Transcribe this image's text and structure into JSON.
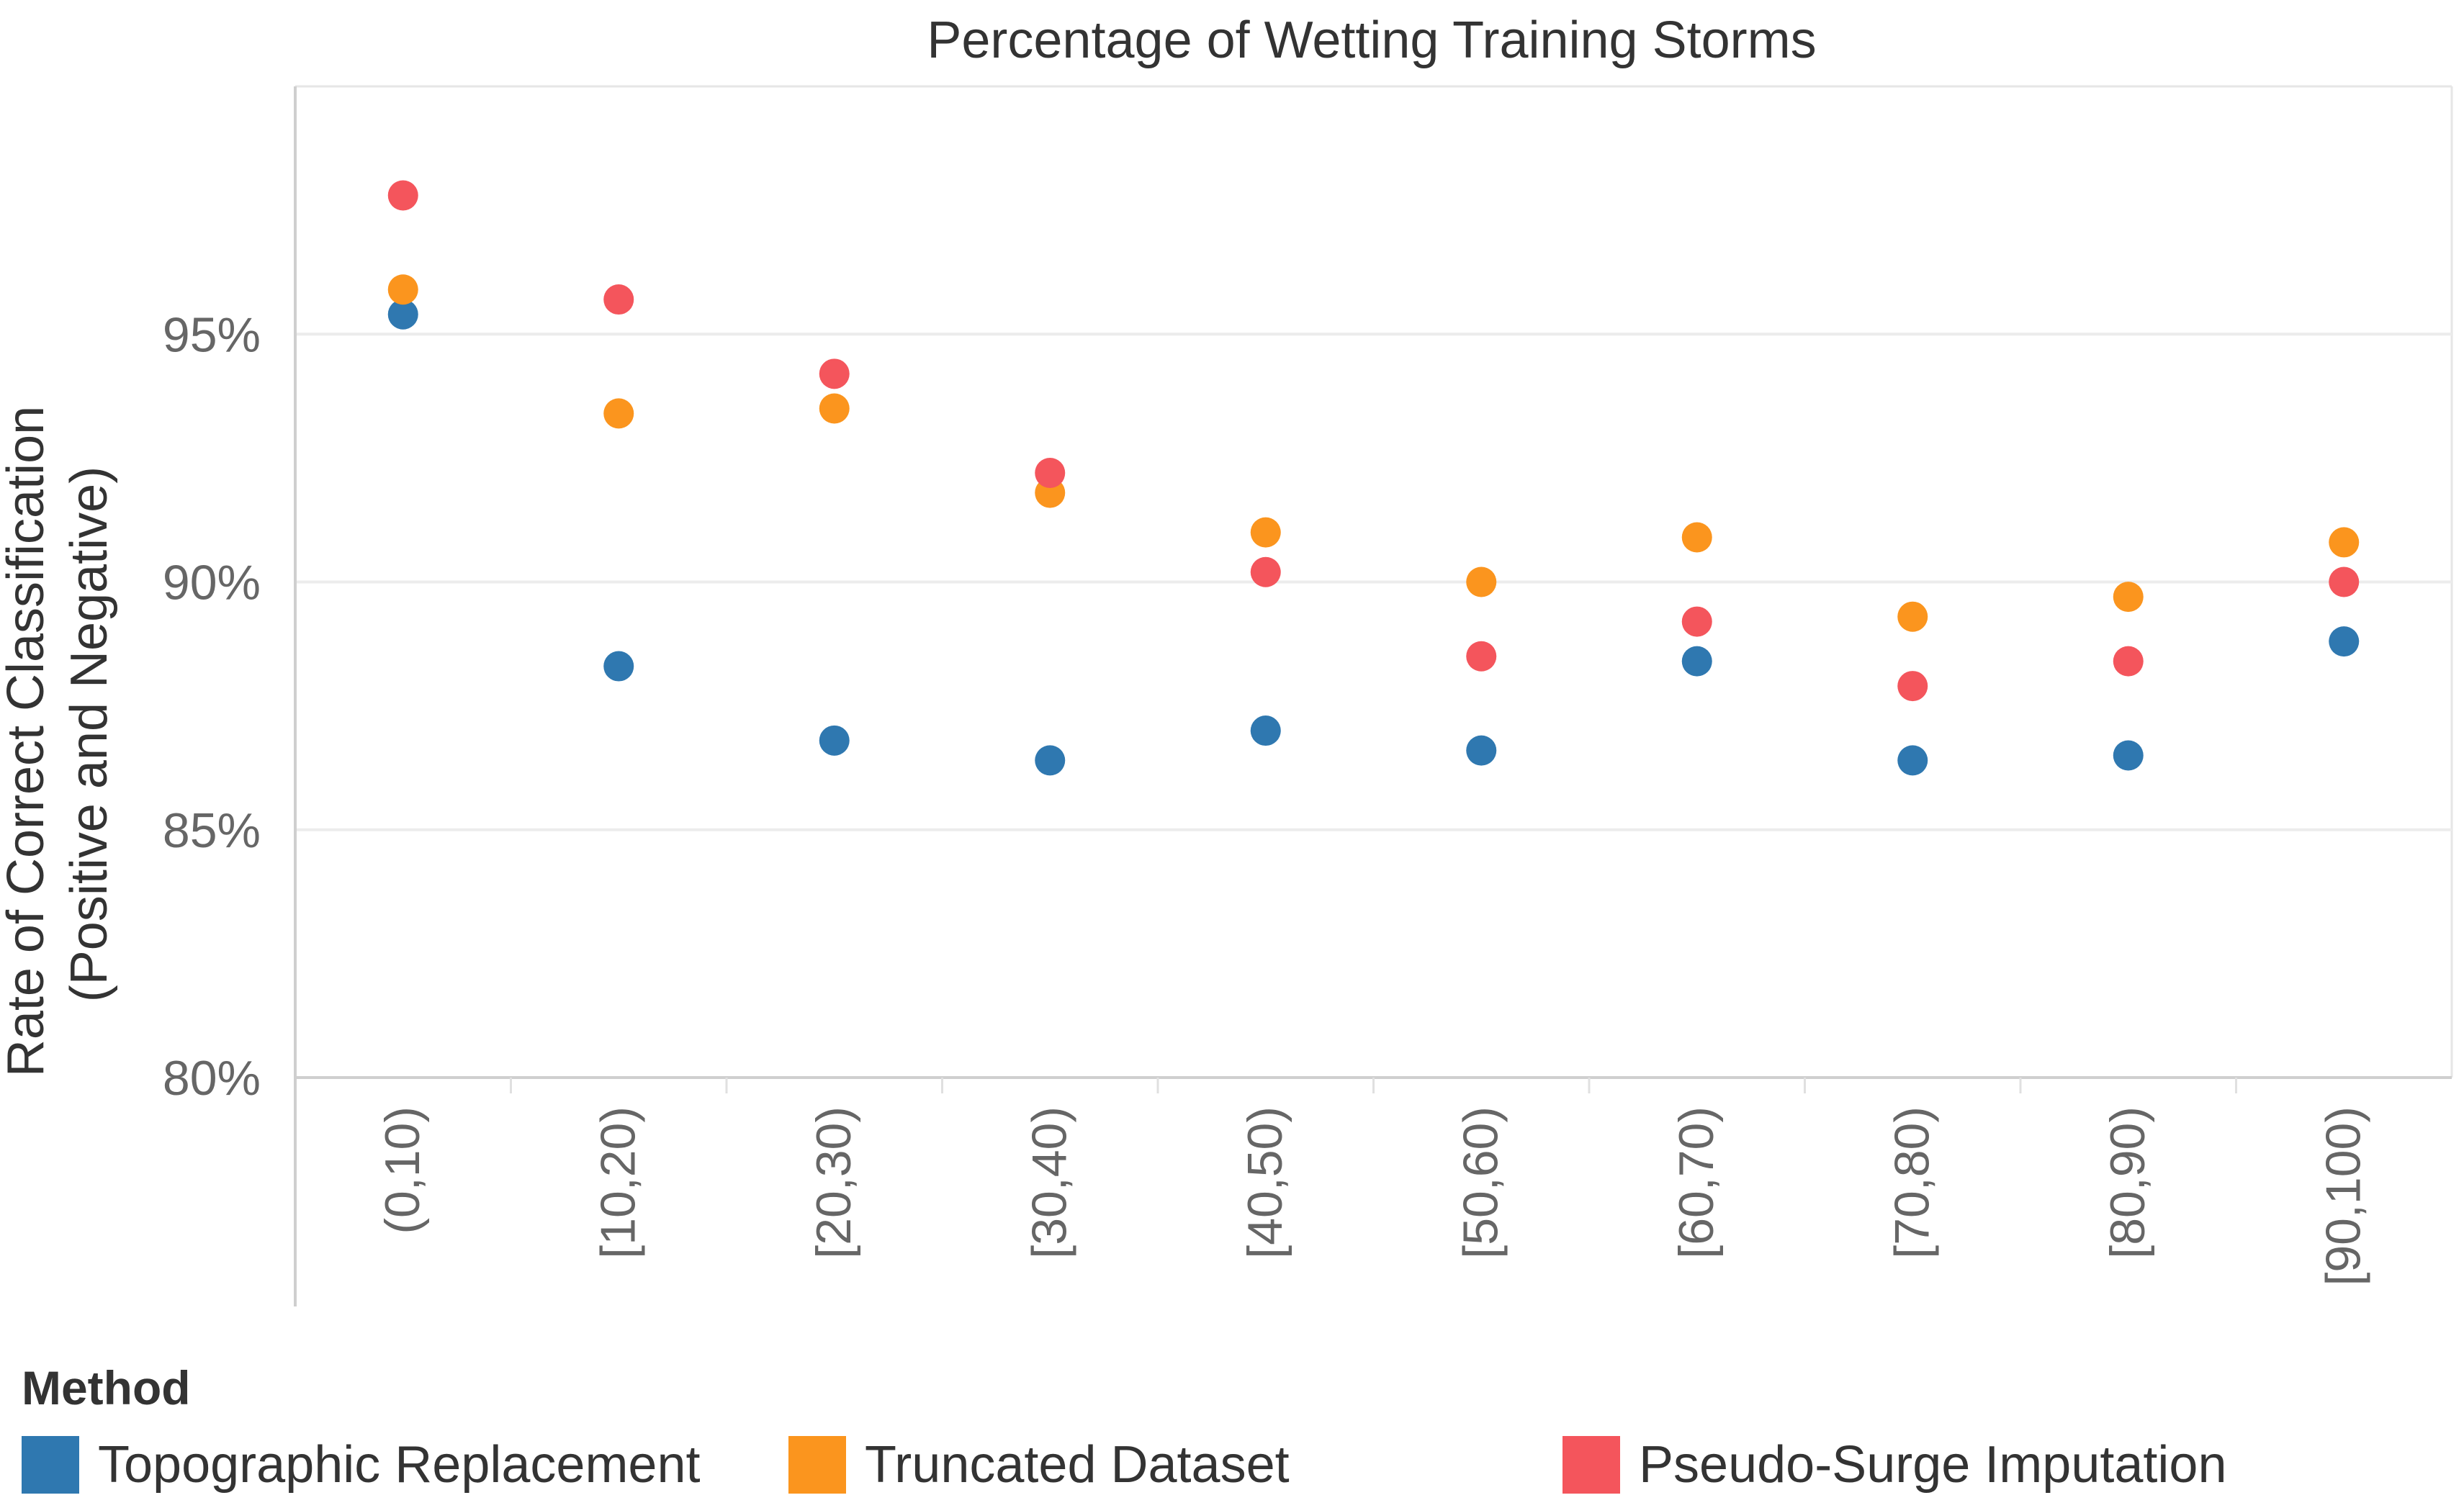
{
  "chart_data": {
    "type": "scatter",
    "title": "Percentage of Wetting Training Storms",
    "ylabel_line1": "Rate of Correct Classification",
    "ylabel_line2": "(Positive and Negative)",
    "xlabel": "",
    "categories": [
      "(0,10)",
      "[10,20)",
      "[20,30)",
      "[30,40)",
      "[40,50)",
      "[50,60)",
      "[60,70)",
      "[70,80)",
      "[80,90)",
      "[90,100)"
    ],
    "ylim": [
      80,
      100
    ],
    "yticks": [
      80,
      85,
      90,
      95
    ],
    "ytick_labels": [
      "80%",
      "85%",
      "90%",
      "95%"
    ],
    "grid": true,
    "legend_title": "Method",
    "series": [
      {
        "name": "Topographic Replacement",
        "color": "#2f78b0",
        "values": [
          95.4,
          88.3,
          86.8,
          86.4,
          87.0,
          86.6,
          88.4,
          86.4,
          86.5,
          88.8
        ]
      },
      {
        "name": "Truncated Dataset",
        "color": "#fb951e",
        "values": [
          95.9,
          93.4,
          93.5,
          91.8,
          91.0,
          90.0,
          90.9,
          89.3,
          89.7,
          90.8
        ]
      },
      {
        "name": "Pseudo-Surge Imputation",
        "color": "#f4555c",
        "values": [
          97.8,
          95.7,
          94.2,
          92.2,
          90.2,
          88.5,
          89.2,
          87.9,
          88.4,
          90.0
        ]
      }
    ]
  }
}
